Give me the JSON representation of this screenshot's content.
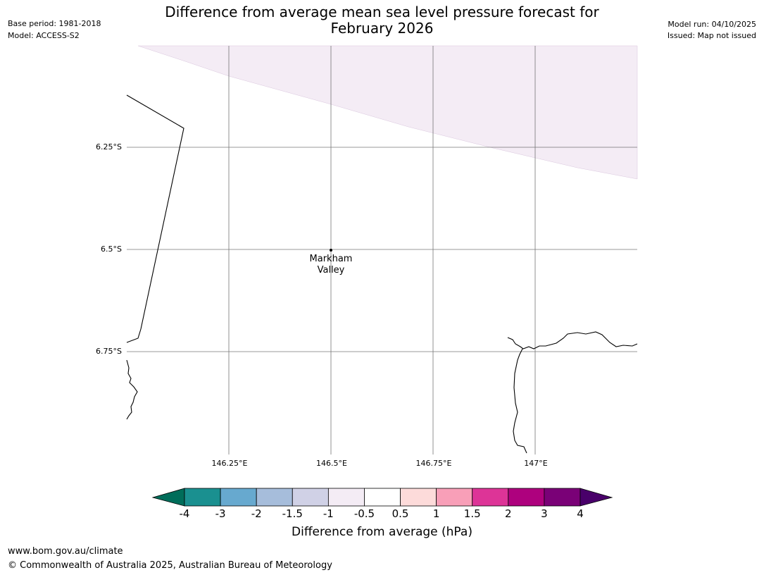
{
  "header": {
    "title_line1": "Difference from average mean sea level pressure forecast for",
    "title_line2": "February 2026",
    "base_period": "Base period: 1981-2018",
    "model": "Model: ACCESS-S2",
    "model_run": "Model run: 04/10/2025",
    "issued": "Issued: Map not issued"
  },
  "map": {
    "lat_labels": [
      "6.25°S",
      "6.5°S",
      "6.75°S"
    ],
    "lon_labels": [
      "146.25°E",
      "146.5°E",
      "146.75°E",
      "147°E"
    ],
    "place": {
      "name_line1": "Markham",
      "name_line2": "Valley",
      "lat": -6.5,
      "lon": 146.5
    },
    "shaded_region": {
      "category": "-1 to -0.5 hPa",
      "color": "#f4ecf5"
    }
  },
  "colorbar": {
    "label": "Difference from average (hPa)",
    "ticks": [
      "-4",
      "-3",
      "-2",
      "-1.5",
      "-1",
      "-0.5",
      "0.5",
      "1",
      "1.5",
      "2",
      "3",
      "4"
    ],
    "colors": [
      "#1a9090",
      "#67a9cf",
      "#a6bddb",
      "#d0d1e6",
      "#f4ecf5",
      "#ffffff",
      "#fddbda",
      "#f89fb8",
      "#dd3497",
      "#ae017e",
      "#7a0177"
    ],
    "low_extend_color": "#006d5a",
    "high_extend_color": "#49006a"
  },
  "footer": {
    "url": "www.bom.gov.au/climate",
    "copyright": "© Commonwealth of Australia 2025, Australian Bureau of Meteorology"
  }
}
